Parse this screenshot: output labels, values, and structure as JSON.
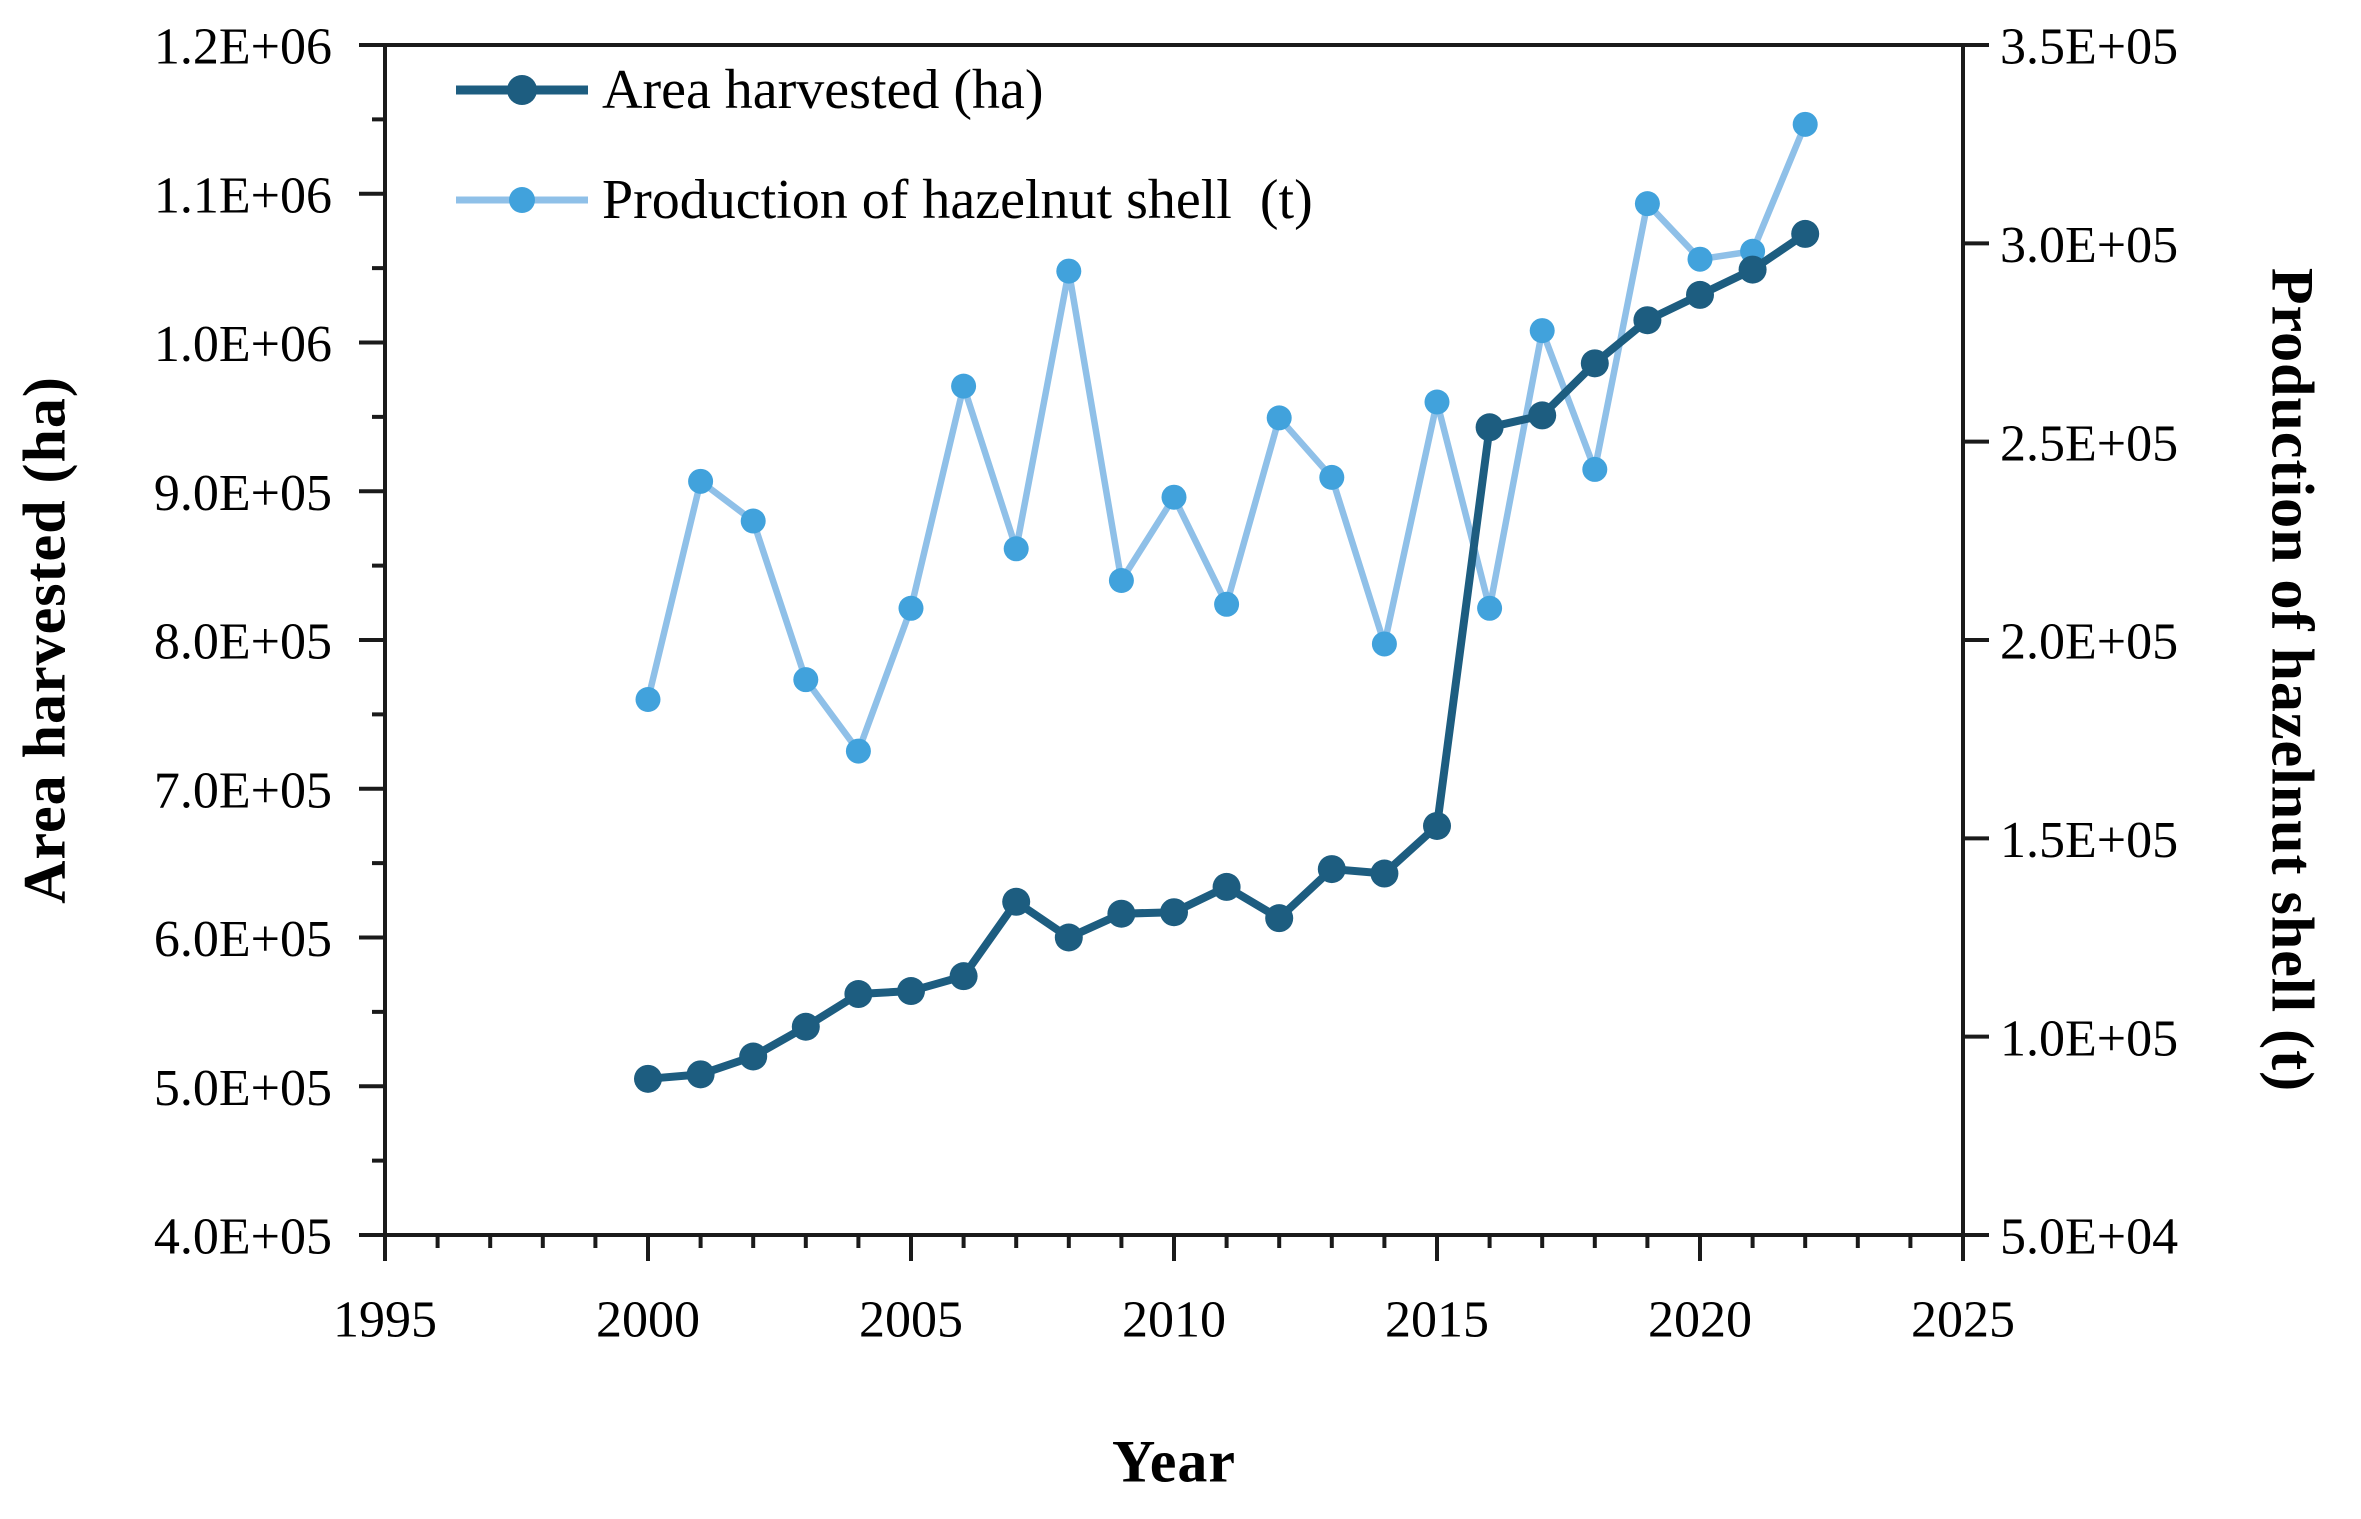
{
  "figure": {
    "x_axis_title": "Year",
    "left_axis_title": "Area harvested (ha)",
    "right_axis_title": "Production of hazelnut shell  (t)"
  },
  "legend": {
    "items": [
      {
        "id": "area",
        "label": "Area harvested (ha)"
      },
      {
        "id": "shell",
        "label": "Production of hazelnut shell  (t)"
      }
    ]
  },
  "colors": {
    "area_line": "#1d5d80",
    "area_marker": "#1d5d80",
    "shell_line": "#8fc0e8",
    "shell_marker": "#41a2dc",
    "axis": "#1a1a1a",
    "text": "#000000",
    "background": "#ffffff"
  },
  "chart_data": {
    "type": "line",
    "title": "",
    "xlabel": "Year",
    "x": [
      2000,
      2001,
      2002,
      2003,
      2004,
      2005,
      2006,
      2007,
      2008,
      2009,
      2010,
      2011,
      2012,
      2013,
      2014,
      2015,
      2016,
      2017,
      2018,
      2019,
      2020,
      2021,
      2022
    ],
    "series": [
      {
        "name": "Area harvested (ha)",
        "axis": "left",
        "values": [
          505000,
          508000,
          520000,
          540000,
          562000,
          564000,
          574000,
          624000,
          600000,
          616000,
          617000,
          634000,
          613000,
          646000,
          643000,
          675000,
          943000,
          951000,
          986000,
          1015000,
          1032000,
          1049000,
          1073000
        ]
      },
      {
        "name": "Production of hazelnut shell (t)",
        "axis": "right",
        "values": [
          185000,
          240000,
          230000,
          190000,
          172000,
          208000,
          264000,
          223000,
          293000,
          215000,
          236000,
          209000,
          256000,
          241000,
          199000,
          260000,
          208000,
          278000,
          243000,
          310000,
          296000,
          298000,
          330000
        ]
      }
    ],
    "x_axis": {
      "min": 1995,
      "max": 2025,
      "major_tick_step": 5,
      "minor_tick_step": 1,
      "tick_labels": [
        "1995",
        "2000",
        "2005",
        "2010",
        "2015",
        "2020",
        "2025"
      ]
    },
    "left_axis": {
      "title": "Area harvested (ha)",
      "min": 400000,
      "max": 1200000,
      "minor_tick_step": 50000,
      "ticks": [
        {
          "value": 1200000,
          "label": "1.2E+06"
        },
        {
          "value": 1100000,
          "label": "1.1E+06"
        },
        {
          "value": 1000000,
          "label": "1.0E+06"
        },
        {
          "value": 900000,
          "label": "9.0E+05"
        },
        {
          "value": 800000,
          "label": "8.0E+05"
        },
        {
          "value": 700000,
          "label": "7.0E+05"
        },
        {
          "value": 600000,
          "label": "6.0E+05"
        },
        {
          "value": 500000,
          "label": "5.0E+05"
        },
        {
          "value": 400000,
          "label": "4.0E+05"
        }
      ]
    },
    "right_axis": {
      "title": "Production of hazelnut shell  (t)",
      "min": 50000,
      "max": 350000,
      "ticks": [
        {
          "value": 350000,
          "label": "3.5E+05"
        },
        {
          "value": 300000,
          "label": "3.0E+05"
        },
        {
          "value": 250000,
          "label": "2.5E+05"
        },
        {
          "value": 200000,
          "label": "2.0E+05"
        },
        {
          "value": 150000,
          "label": "1.5E+05"
        },
        {
          "value": 100000,
          "label": "1.0E+05"
        },
        {
          "value": 50000,
          "label": "5.0E+04"
        }
      ]
    },
    "grid": false,
    "legend_position": "top-left-inside"
  }
}
